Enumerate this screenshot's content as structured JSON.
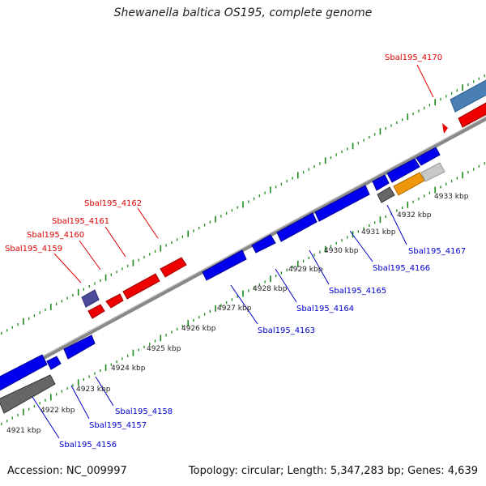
{
  "title": "Shewanella baltica OS195, complete genome",
  "footer": {
    "accession": "Accession: NC_009997",
    "summary": "Topology: circular; Length: 5,347,283 bp; Genes: 4,639"
  },
  "colors": {
    "backbone": "#8a8a8a",
    "tick": "#1a8a1a",
    "scale_text": "#222222",
    "gene_blue": "#0000ee",
    "gene_red": "#ee0000",
    "gene_navy": "#4b4b9a",
    "gene_steel": "#4a7fb5",
    "gene_dark_gray": "#666666",
    "gene_light_gray": "#c8c8c8",
    "gene_orange": "#f0960a",
    "label_red": "#dd0000",
    "label_blue": "#0000cc"
  },
  "scale_labels": [
    "4921 kbp",
    "4922 kbp",
    "4923 kbp",
    "4924 kbp",
    "4925 kbp",
    "4926 kbp",
    "4927 kbp",
    "4928 kbp",
    "4929 kbp",
    "4930 kbp",
    "4931 kbp",
    "4932 kbp",
    "4933 kbp"
  ],
  "top_labels": [
    {
      "text": "Sbal195_4159",
      "color": "red"
    },
    {
      "text": "Sbal195_4160",
      "color": "red"
    },
    {
      "text": "Sbal195_4161",
      "color": "red"
    },
    {
      "text": "Sbal195_4162",
      "color": "red"
    },
    {
      "text": "Sbal195_4170",
      "color": "red"
    }
  ],
  "bottom_labels": [
    {
      "text": "Sbal195_4156",
      "color": "blue"
    },
    {
      "text": "Sbal195_4157",
      "color": "blue"
    },
    {
      "text": "Sbal195_4158",
      "color": "blue"
    },
    {
      "text": "Sbal195_4163",
      "color": "blue"
    },
    {
      "text": "Sbal195_4164",
      "color": "blue"
    },
    {
      "text": "Sbal195_4165",
      "color": "blue"
    },
    {
      "text": "Sbal195_4166",
      "color": "blue"
    },
    {
      "text": "Sbal195_4167",
      "color": "blue"
    }
  ]
}
